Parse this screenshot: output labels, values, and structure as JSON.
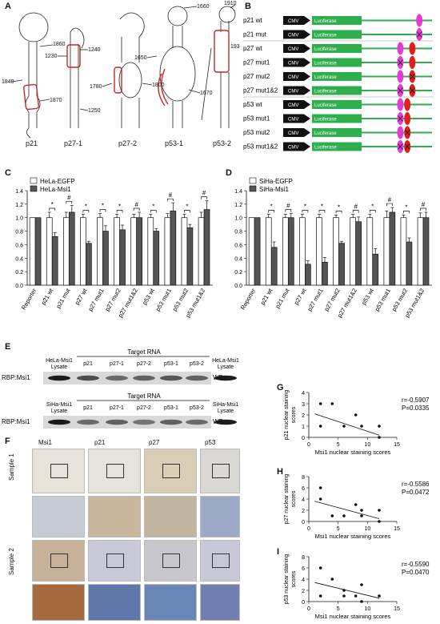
{
  "panels": {
    "A": {
      "letter": "A",
      "structures": [
        {
          "name": "p21",
          "labels": [
            "1860",
            "1840",
            "1870"
          ]
        },
        {
          "name": "p27-1",
          "labels": [
            "1230",
            "1240",
            "1250"
          ]
        },
        {
          "name": "p27-2",
          "labels": [
            "1780",
            "1800"
          ]
        },
        {
          "name": "p53-1",
          "labels": [
            "1660",
            "1650",
            "1670"
          ]
        },
        {
          "name": "p53-2",
          "labels": [
            "1910",
            "1930"
          ]
        }
      ]
    },
    "B": {
      "letter": "B",
      "cmv": "CMV",
      "luc": "Luciferase",
      "rows": [
        {
          "label": "p21 wt",
          "marks": [
            {
              "pos": 0.82,
              "color": "#e63ad6",
              "x": false
            }
          ]
        },
        {
          "label": "p21 mut",
          "marks": [
            {
              "pos": 0.82,
              "color": "#e63ad6",
              "x": true
            }
          ]
        },
        {
          "label": "p27 wt",
          "marks": [
            {
              "pos": 0.55,
              "color": "#e63ad6",
              "x": false
            },
            {
              "pos": 0.72,
              "color": "#e01e1e",
              "x": false
            }
          ]
        },
        {
          "label": "p27 mut1",
          "marks": [
            {
              "pos": 0.55,
              "color": "#e63ad6",
              "x": true
            },
            {
              "pos": 0.72,
              "color": "#e01e1e",
              "x": false
            }
          ]
        },
        {
          "label": "p27 mut2",
          "marks": [
            {
              "pos": 0.55,
              "color": "#e63ad6",
              "x": false
            },
            {
              "pos": 0.72,
              "color": "#e01e1e",
              "x": true
            }
          ]
        },
        {
          "label": "p27 mut1&2",
          "marks": [
            {
              "pos": 0.55,
              "color": "#e63ad6",
              "x": true
            },
            {
              "pos": 0.72,
              "color": "#e01e1e",
              "x": true
            }
          ]
        },
        {
          "label": "p53 wt",
          "marks": [
            {
              "pos": 0.55,
              "color": "#e63ad6",
              "x": false
            },
            {
              "pos": 0.65,
              "color": "#e01e1e",
              "x": false
            }
          ]
        },
        {
          "label": "p53 mut1",
          "marks": [
            {
              "pos": 0.55,
              "color": "#e63ad6",
              "x": true
            },
            {
              "pos": 0.65,
              "color": "#e01e1e",
              "x": false
            }
          ]
        },
        {
          "label": "p53 mut2",
          "marks": [
            {
              "pos": 0.55,
              "color": "#e63ad6",
              "x": false
            },
            {
              "pos": 0.65,
              "color": "#e01e1e",
              "x": true
            }
          ]
        },
        {
          "label": "p53 mut1&2",
          "marks": [
            {
              "pos": 0.55,
              "color": "#e63ad6",
              "x": true
            },
            {
              "pos": 0.65,
              "color": "#e01e1e",
              "x": true
            }
          ]
        }
      ]
    },
    "C": {
      "letter": "C"
    },
    "D": {
      "letter": "D"
    },
    "E": {
      "letter": "E",
      "blot1": {
        "header": "Target RNA",
        "lanes": [
          "HeLa-Msi1\nLysate",
          "p21",
          "p27-1",
          "p27-2",
          "p53-1",
          "p53-2",
          "HeLa-Msi1\nLysate"
        ],
        "left": "RBP:Msi1",
        "right": "WB"
      },
      "blot2": {
        "header": "Target RNA",
        "lanes": [
          "SiHa-Msi1\nLysate",
          "p21",
          "p27-1",
          "p27-2",
          "p53-1",
          "p53-2",
          "SiHa-Msi1\nLysate"
        ],
        "left": "RBP:Msi1",
        "right": "WB"
      }
    },
    "F": {
      "letter": "F",
      "columns": [
        "Msi1",
        "p21",
        "p27",
        "p53"
      ],
      "rows": [
        "Sample 1",
        "Sample 2"
      ]
    },
    "G": {
      "letter": "G"
    },
    "H": {
      "letter": "H"
    },
    "I": {
      "letter": "I"
    }
  },
  "chart_data": [
    {
      "id": "C",
      "type": "bar",
      "categories": [
        "Reporter",
        "p21 wt",
        "p21 mut",
        "p27 wt",
        "p27 mut1",
        "p27 mut2",
        "p27 mut1&2",
        "p53 wt",
        "p53 mut1",
        "p53 mut2",
        "p53 mut1&2"
      ],
      "series": [
        {
          "name": "HeLa-EGFP",
          "color": "#ffffff",
          "values": [
            1.0,
            1.0,
            1.0,
            1.0,
            1.0,
            1.0,
            1.0,
            1.0,
            1.0,
            1.0,
            1.0
          ],
          "errors": [
            0,
            0.08,
            0.08,
            0.05,
            0.06,
            0.05,
            0.05,
            0.05,
            0.06,
            0.05,
            0.08
          ]
        },
        {
          "name": "HeLa-Msi1",
          "color": "#555555",
          "values": [
            1.0,
            0.72,
            1.08,
            0.62,
            0.8,
            0.82,
            1.0,
            0.8,
            1.1,
            0.85,
            1.12
          ],
          "errors": [
            0,
            0.06,
            0.1,
            0.03,
            0.08,
            0.07,
            0.08,
            0.04,
            0.12,
            0.05,
            0.13
          ]
        }
      ],
      "sig": [
        "",
        "*",
        "#",
        "*",
        "*",
        "*",
        "#",
        "*",
        "#",
        "*",
        "#"
      ],
      "ylim": [
        0,
        1.4
      ],
      "yticks": [
        "0.0",
        "0.2",
        "0.4",
        "0.6",
        "0.8",
        "1.0",
        "1.2",
        "1.4"
      ]
    },
    {
      "id": "D",
      "type": "bar",
      "categories": [
        "Reporter",
        "p21 wt",
        "p21 mut",
        "p27 wt",
        "p27 mut1",
        "p27 mut2",
        "p27 mut1&2",
        "p53 wt",
        "p53 mut1",
        "p53 mut2",
        "p53 mut1&2"
      ],
      "series": [
        {
          "name": "SiHa-EGFP",
          "color": "#ffffff",
          "values": [
            1.0,
            1.0,
            1.0,
            1.0,
            1.0,
            1.0,
            1.0,
            1.0,
            1.0,
            1.0,
            1.0
          ],
          "errors": [
            0,
            0.05,
            0.05,
            0.05,
            0.05,
            0.04,
            0.05,
            0.05,
            0.1,
            0.04,
            0.07
          ]
        },
        {
          "name": "SiHa-Msi1",
          "color": "#555555",
          "values": [
            1.0,
            0.56,
            1.0,
            0.31,
            0.34,
            0.62,
            0.94,
            0.46,
            1.08,
            0.64,
            1.0
          ],
          "errors": [
            0,
            0.08,
            0.06,
            0.05,
            0.07,
            0.03,
            0.07,
            0.08,
            0.07,
            0.06,
            0.08
          ]
        }
      ],
      "sig": [
        "",
        "*",
        "#",
        "*",
        "*",
        "*",
        "#",
        "*",
        "#",
        "*",
        "#"
      ],
      "ylim": [
        0,
        1.4
      ],
      "yticks": [
        "0.0",
        "0.2",
        "0.4",
        "0.6",
        "0.8",
        "1.0",
        "1.2",
        "1.4"
      ]
    },
    {
      "id": "G",
      "type": "scatter",
      "xlabel": "Msi1 nuclear staining scores",
      "ylabel": "p21 nuclear staining scores",
      "r": "r=-0.5907",
      "p": "P=0.0335",
      "xlim": [
        0,
        15
      ],
      "ylim": [
        0,
        4
      ],
      "xticks": [
        0,
        5,
        10,
        15
      ],
      "yticks": [
        0,
        1,
        2,
        3,
        4
      ],
      "points": [
        [
          2,
          3
        ],
        [
          4,
          3
        ],
        [
          2,
          1
        ],
        [
          6,
          1
        ],
        [
          8,
          2
        ],
        [
          9,
          1
        ],
        [
          12,
          1
        ],
        [
          12,
          0
        ]
      ],
      "fit": [
        [
          1,
          2.1
        ],
        [
          12,
          0.2
        ]
      ]
    },
    {
      "id": "H",
      "type": "scatter",
      "xlabel": "Msi1 nuclear staining scores",
      "ylabel": "p27 nuclear staining scores",
      "r": "r=-0.5586",
      "p": "P=0.0472",
      "xlim": [
        0,
        15
      ],
      "ylim": [
        0,
        8
      ],
      "xticks": [
        0,
        5,
        10,
        15
      ],
      "yticks": [
        0,
        2,
        4,
        6,
        8
      ],
      "points": [
        [
          2,
          6
        ],
        [
          2,
          4
        ],
        [
          4,
          1
        ],
        [
          6,
          1
        ],
        [
          8,
          3
        ],
        [
          9,
          2
        ],
        [
          9,
          1
        ],
        [
          12,
          0
        ],
        [
          12,
          2
        ]
      ],
      "fit": [
        [
          1,
          3.6
        ],
        [
          12,
          0.5
        ]
      ]
    },
    {
      "id": "I",
      "type": "scatter",
      "xlabel": "Msi1 nuclear staining scores",
      "ylabel": "p53 nuclear staining scores",
      "r": "r=-0.5590",
      "p": "P=0.0470",
      "xlim": [
        0,
        15
      ],
      "ylim": [
        0,
        8
      ],
      "xticks": [
        0,
        5,
        10,
        15
      ],
      "yticks": [
        0,
        2,
        4,
        6,
        8
      ],
      "points": [
        [
          2,
          6
        ],
        [
          2,
          1
        ],
        [
          4,
          4
        ],
        [
          6,
          2
        ],
        [
          6,
          1
        ],
        [
          8,
          1
        ],
        [
          9,
          3
        ],
        [
          9,
          0
        ],
        [
          12,
          1
        ]
      ],
      "fit": [
        [
          1,
          3.4
        ],
        [
          12,
          0.6
        ]
      ]
    }
  ]
}
